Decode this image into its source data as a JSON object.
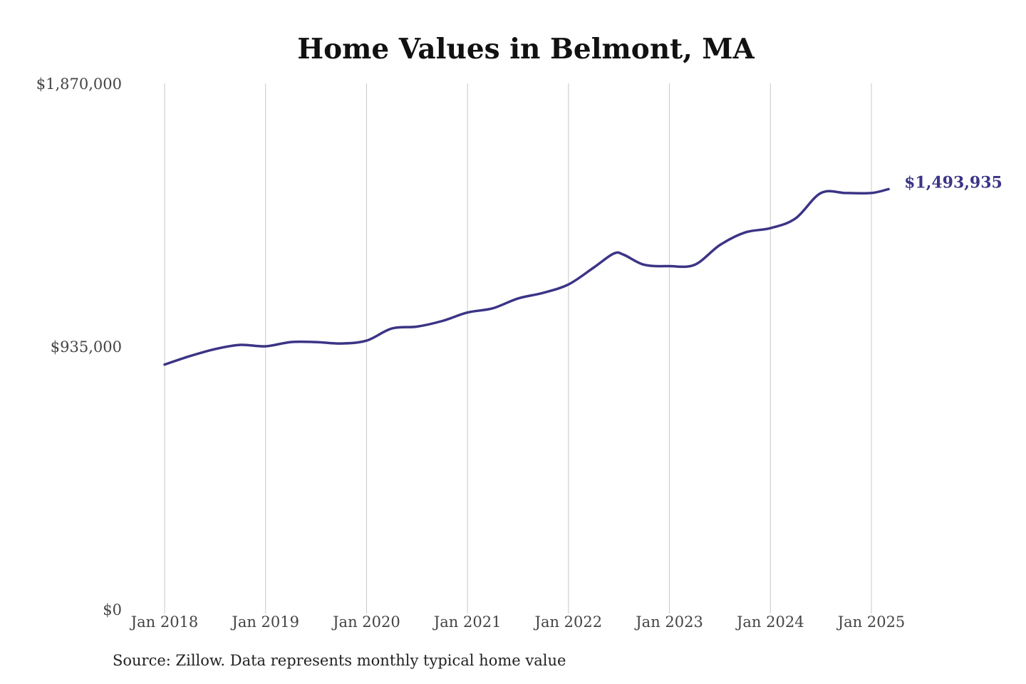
{
  "chart_data": {
    "type": "line",
    "title": "Home Values in Belmont, MA",
    "xlabel": "",
    "ylabel": "",
    "ylim": [
      0,
      1870000
    ],
    "yticks": [
      {
        "value": 0,
        "label": "$0"
      },
      {
        "value": 935000,
        "label": "$935,000"
      },
      {
        "value": 1870000,
        "label": "$1,870,000"
      }
    ],
    "xticks": [
      {
        "value": 2018.0,
        "label": "Jan 2018"
      },
      {
        "value": 2019.0,
        "label": "Jan 2019"
      },
      {
        "value": 2020.0,
        "label": "Jan 2020"
      },
      {
        "value": 2021.0,
        "label": "Jan 2021"
      },
      {
        "value": 2022.0,
        "label": "Jan 2022"
      },
      {
        "value": 2023.0,
        "label": "Jan 2023"
      },
      {
        "value": 2024.0,
        "label": "Jan 2024"
      },
      {
        "value": 2025.0,
        "label": "Jan 2025"
      }
    ],
    "grid": {
      "vertical": true,
      "horizontal": false
    },
    "series": [
      {
        "color": "#3b3486",
        "end_label": "$1,493,935",
        "points": [
          [
            2018.0,
            870000
          ],
          [
            2018.25,
            900000
          ],
          [
            2018.5,
            925000
          ],
          [
            2018.75,
            940000
          ],
          [
            2019.0,
            935000
          ],
          [
            2019.25,
            950000
          ],
          [
            2019.5,
            950000
          ],
          [
            2019.75,
            945000
          ],
          [
            2020.0,
            955000
          ],
          [
            2020.25,
            998000
          ],
          [
            2020.5,
            1005000
          ],
          [
            2020.75,
            1025000
          ],
          [
            2021.0,
            1055000
          ],
          [
            2021.25,
            1070000
          ],
          [
            2021.5,
            1105000
          ],
          [
            2021.75,
            1125000
          ],
          [
            2022.0,
            1155000
          ],
          [
            2022.25,
            1215000
          ],
          [
            2022.45,
            1265000
          ],
          [
            2022.55,
            1260000
          ],
          [
            2022.75,
            1225000
          ],
          [
            2023.0,
            1220000
          ],
          [
            2023.25,
            1225000
          ],
          [
            2023.5,
            1295000
          ],
          [
            2023.75,
            1340000
          ],
          [
            2024.0,
            1355000
          ],
          [
            2024.25,
            1390000
          ],
          [
            2024.5,
            1480000
          ],
          [
            2024.75,
            1480000
          ],
          [
            2025.0,
            1480000
          ],
          [
            2025.17,
            1493935
          ]
        ]
      }
    ]
  },
  "footer": {
    "source": "Source: Zillow. Data represents monthly typical home value"
  }
}
